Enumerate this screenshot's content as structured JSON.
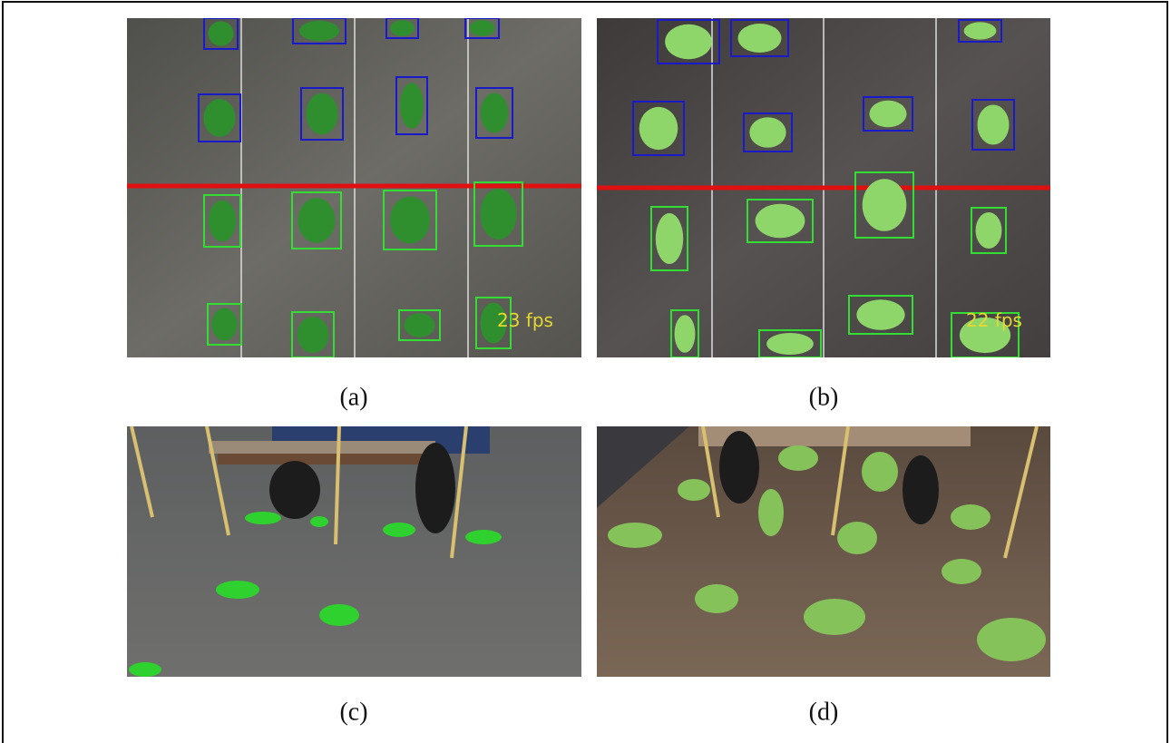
{
  "figure": {
    "panels": [
      {
        "label": "(a)",
        "overlay": "23 fps"
      },
      {
        "label": "(b)",
        "overlay": "22 fps"
      },
      {
        "label": "(c)"
      },
      {
        "label": "(d)"
      }
    ]
  }
}
